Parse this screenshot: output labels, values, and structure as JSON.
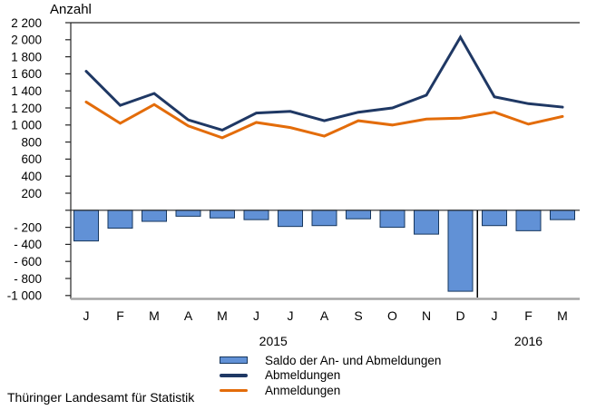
{
  "chart_data": {
    "type": "combo",
    "title": "",
    "ylabel": "Anzahl",
    "xlabel": "",
    "grid": false,
    "legend_position": "bottom",
    "ylim": [
      -1000,
      2200
    ],
    "ytick_step": 200,
    "ytick_labels": [
      {
        "value": 2200,
        "label": "2 200"
      },
      {
        "value": 2000,
        "label": "2 000"
      },
      {
        "value": 1800,
        "label": "1 800"
      },
      {
        "value": 1600,
        "label": "1 600"
      },
      {
        "value": 1400,
        "label": "1 400"
      },
      {
        "value": 1200,
        "label": "1 200"
      },
      {
        "value": 1000,
        "label": "1 000"
      },
      {
        "value": 800,
        "label": "800"
      },
      {
        "value": 600,
        "label": "600"
      },
      {
        "value": 400,
        "label": "400"
      },
      {
        "value": 200,
        "label": "200"
      },
      {
        "value": -200,
        "label": "- 200"
      },
      {
        "value": -400,
        "label": "- 400"
      },
      {
        "value": -600,
        "label": "- 600"
      },
      {
        "value": -800,
        "label": "- 800"
      },
      {
        "value": -1000,
        "label": "-1 000"
      }
    ],
    "categories": [
      "J",
      "F",
      "M",
      "A",
      "M",
      "J",
      "J",
      "A",
      "S",
      "O",
      "N",
      "D",
      "J",
      "F",
      "M"
    ],
    "category_years": [
      {
        "label": "2015",
        "from": 0,
        "to": 11
      },
      {
        "label": "2016",
        "from": 12,
        "to": 14
      }
    ],
    "series": [
      {
        "name": "Saldo der An- und Abmeldungen",
        "type": "bar",
        "color": "#6191D6",
        "border": "#17375E",
        "values": [
          -360,
          -210,
          -130,
          -70,
          -90,
          -110,
          -190,
          -180,
          -100,
          -200,
          -280,
          -950,
          -180,
          -240,
          -110
        ]
      },
      {
        "name": "Abmeldungen",
        "type": "line",
        "color": "#1F3864",
        "values": [
          1630,
          1230,
          1370,
          1060,
          940,
          1140,
          1160,
          1050,
          1150,
          1200,
          1350,
          2030,
          1330,
          1250,
          1210
        ]
      },
      {
        "name": "Anmeldungen",
        "type": "line",
        "color": "#E36C0A",
        "values": [
          1270,
          1020,
          1240,
          990,
          850,
          1030,
          970,
          870,
          1050,
          1000,
          1070,
          1080,
          1150,
          1010,
          1100
        ]
      }
    ],
    "colors": {
      "axis": "#262626",
      "zero_line": "#262626",
      "baseline": "#A6A6A6",
      "year_separator": "#000000",
      "tick_text": "#000000"
    }
  },
  "footer": {
    "source": "Thüringer Landesamt für Statistik"
  }
}
